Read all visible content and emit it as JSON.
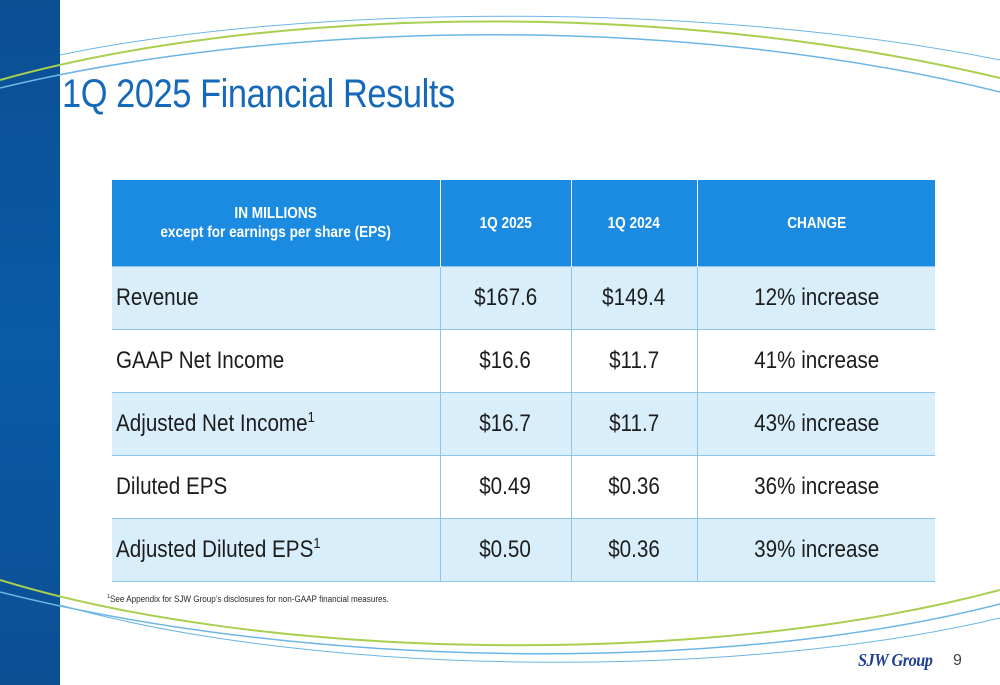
{
  "slide": {
    "title": "1Q 2025 Financial Results",
    "page_number": "9",
    "logo_text": "SJW Group",
    "footnote_marker": "1",
    "footnote": "See Appendix for SJW Group’s disclosures for non-GAAP financial measures."
  },
  "table": {
    "header": {
      "label_line1": "IN MILLIONS",
      "label_line2": "except for earnings per share (EPS)",
      "col_2025": "1Q 2025",
      "col_2024": "1Q 2024",
      "col_change": "CHANGE"
    },
    "rows": [
      {
        "label": "Revenue",
        "sup": "",
        "q2025": "$167.6",
        "q2024": "$149.4",
        "change": "12% increase"
      },
      {
        "label": "GAAP Net Income",
        "sup": "",
        "q2025": "$16.6",
        "q2024": "$11.7",
        "change": "41% increase"
      },
      {
        "label": "Adjusted Net Income",
        "sup": "1",
        "q2025": "$16.7",
        "q2024": "$11.7",
        "change": "43% increase"
      },
      {
        "label": "Diluted EPS",
        "sup": "",
        "q2025": "$0.49",
        "q2024": "$0.36",
        "change": "36% increase"
      },
      {
        "label": "Adjusted Diluted EPS",
        "sup": "1",
        "q2025": "$0.50",
        "q2024": "$0.36",
        "change": "39% increase"
      }
    ]
  },
  "colors": {
    "brand_dark_blue": "#0b4f93",
    "title_blue": "#1569b8",
    "header_blue": "#1a8be0",
    "row_shade": "#d9eefb",
    "swoosh_green": "#a9cf4f",
    "swoosh_light_blue": "#6cb6e6"
  }
}
